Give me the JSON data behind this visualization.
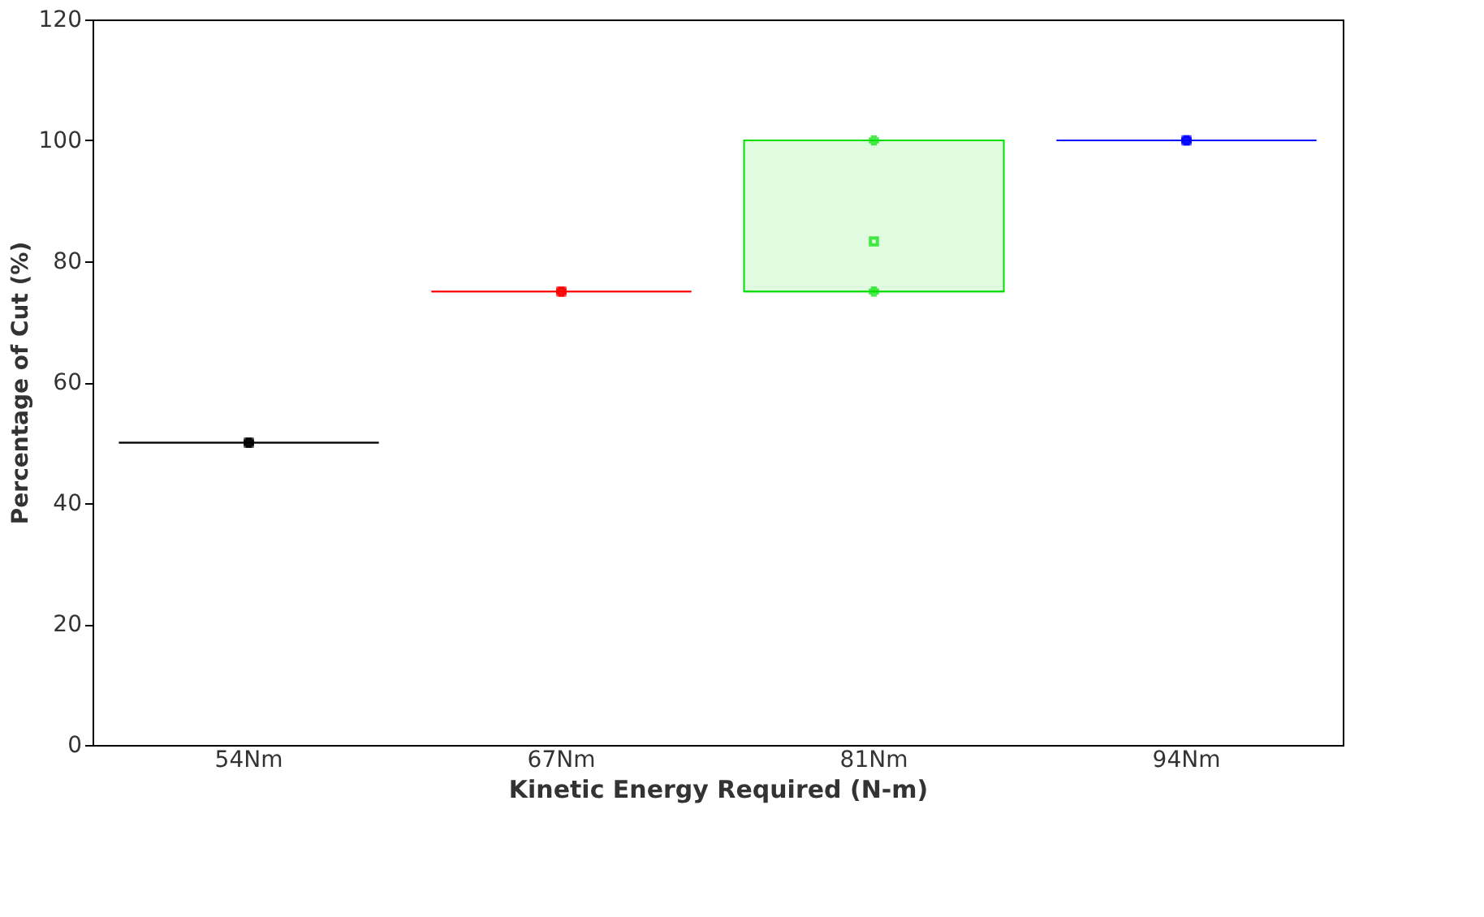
{
  "chart_data": {
    "type": "box",
    "xlabel": "Kinetic Energy Required (N-m)",
    "ylabel": "Percentage of Cut (%)",
    "categories": [
      "54Nm",
      "67Nm",
      "81Nm",
      "94Nm"
    ],
    "colors": [
      "#000000",
      "#ff0000",
      "#00e000",
      "#0000ff"
    ],
    "boxes": [
      {
        "low": 50,
        "q1": 50,
        "median": 50,
        "q3": 50,
        "high": 50,
        "mean": 50
      },
      {
        "low": 75,
        "q1": 75,
        "median": 75,
        "q3": 75,
        "high": 75,
        "mean": 75
      },
      {
        "low": 75,
        "q1": 75,
        "median": 75,
        "q3": 100,
        "high": 100,
        "mean": 83.3
      },
      {
        "low": 100,
        "q1": 100,
        "median": 100,
        "q3": 100,
        "high": 100,
        "mean": 100
      }
    ],
    "ylim": [
      0,
      120
    ],
    "yticks": [
      0,
      20,
      40,
      60,
      80,
      100,
      120
    ],
    "grid": false,
    "legend": false
  }
}
